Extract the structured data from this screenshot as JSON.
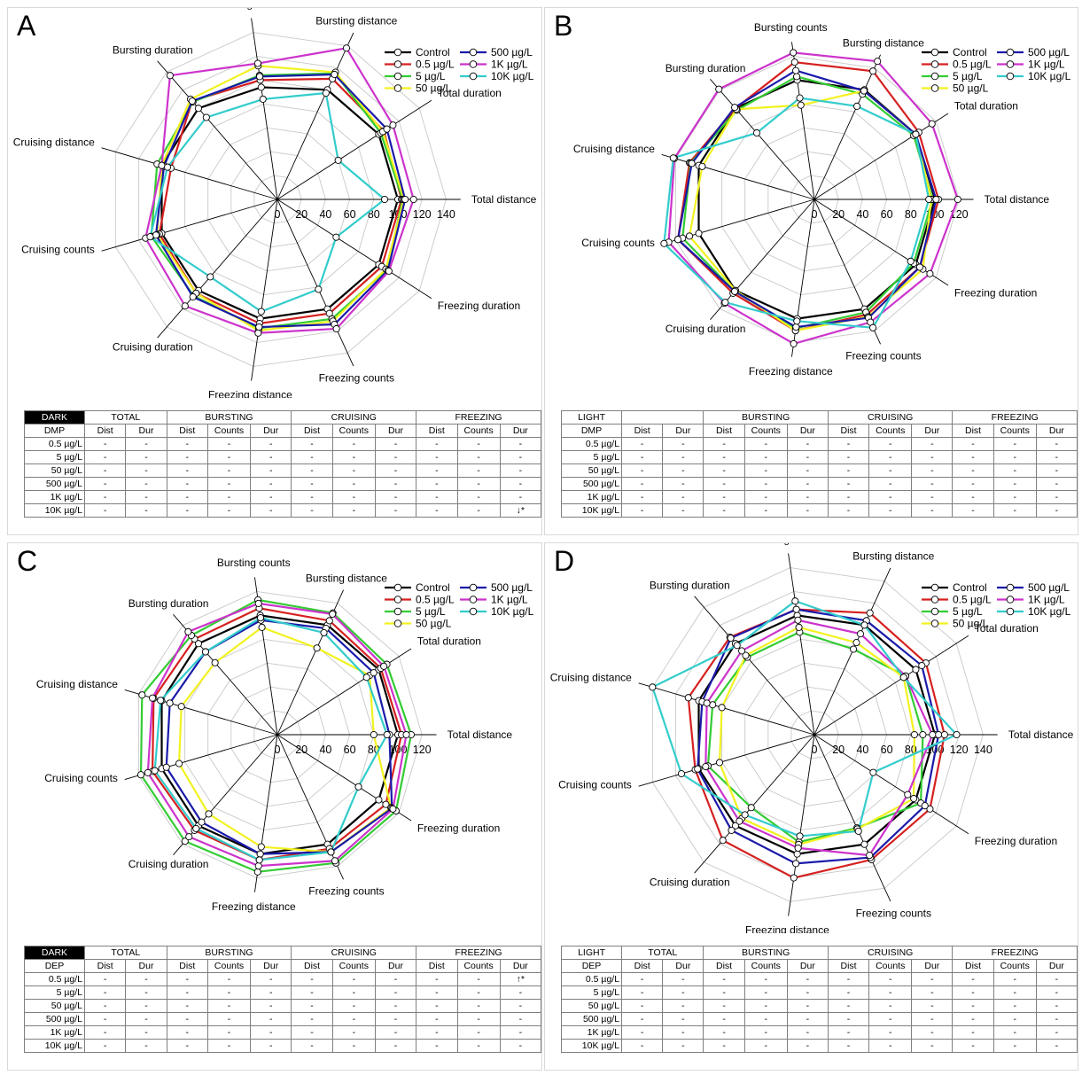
{
  "figure": {
    "panels": [
      {
        "letter": "A",
        "table": {
          "condition": "DARK",
          "compound": "DMP",
          "total_header": "TOTAL",
          "cells": [
            [
              "-",
              "-",
              "-",
              "-",
              "-",
              "-",
              "-",
              "-",
              "-",
              "-",
              "-"
            ],
            [
              "-",
              "-",
              "-",
              "-",
              "-",
              "-",
              "-",
              "-",
              "-",
              "-",
              "-"
            ],
            [
              "-",
              "-",
              "-",
              "-",
              "-",
              "-",
              "-",
              "-",
              "-",
              "-",
              "-"
            ],
            [
              "-",
              "-",
              "-",
              "-",
              "-",
              "-",
              "-",
              "-",
              "-",
              "-",
              "-"
            ],
            [
              "-",
              "-",
              "-",
              "-",
              "-",
              "-",
              "-",
              "-",
              "-",
              "-",
              "-"
            ],
            [
              "-",
              "-",
              "-",
              "-",
              "-",
              "-",
              "-",
              "-",
              "-",
              "-",
              "↓*"
            ]
          ]
        }
      },
      {
        "letter": "B",
        "table": {
          "condition": "LIGHT",
          "compound": "DMP",
          "total_header": "",
          "cells": [
            [
              "-",
              "-",
              "-",
              "-",
              "-",
              "-",
              "-",
              "-",
              "-",
              "-",
              "-"
            ],
            [
              "-",
              "-",
              "-",
              "-",
              "-",
              "-",
              "-",
              "-",
              "-",
              "-",
              "-"
            ],
            [
              "-",
              "-",
              "-",
              "-",
              "-",
              "-",
              "-",
              "-",
              "-",
              "-",
              "-"
            ],
            [
              "-",
              "-",
              "-",
              "-",
              "-",
              "-",
              "-",
              "-",
              "-",
              "-",
              "-"
            ],
            [
              "-",
              "-",
              "-",
              "-",
              "-",
              "-",
              "-",
              "-",
              "-",
              "-",
              "-"
            ],
            [
              "-",
              "-",
              "-",
              "-",
              "-",
              "-",
              "-",
              "-",
              "-",
              "-",
              "-"
            ]
          ]
        }
      },
      {
        "letter": "C",
        "table": {
          "condition": "DARK",
          "compound": "DEP",
          "total_header": "TOTAL",
          "cells": [
            [
              "-",
              "-",
              "-",
              "-",
              "-",
              "-",
              "-",
              "-",
              "-",
              "-",
              "↑*"
            ],
            [
              "-",
              "-",
              "-",
              "-",
              "-",
              "-",
              "-",
              "-",
              "-",
              "-",
              "-"
            ],
            [
              "-",
              "-",
              "-",
              "-",
              "-",
              "-",
              "-",
              "-",
              "-",
              "-",
              "-"
            ],
            [
              "-",
              "-",
              "-",
              "-",
              "-",
              "-",
              "-",
              "-",
              "-",
              "-",
              "-"
            ],
            [
              "-",
              "-",
              "-",
              "-",
              "-",
              "-",
              "-",
              "-",
              "-",
              "-",
              "-"
            ],
            [
              "-",
              "-",
              "-",
              "-",
              "-",
              "-",
              "-",
              "-",
              "-",
              "-",
              "-"
            ]
          ]
        }
      },
      {
        "letter": "D",
        "table": {
          "condition": "LIGHT",
          "compound": "DEP",
          "total_header": "TOTAL",
          "cells": [
            [
              "-",
              "-",
              "-",
              "-",
              "-",
              "-",
              "-",
              "-",
              "-",
              "-",
              "-"
            ],
            [
              "-",
              "-",
              "-",
              "-",
              "-",
              "-",
              "-",
              "-",
              "-",
              "-",
              "-"
            ],
            [
              "-",
              "-",
              "-",
              "-",
              "-",
              "-",
              "-",
              "-",
              "-",
              "-",
              "-"
            ],
            [
              "-",
              "-",
              "-",
              "-",
              "-",
              "-",
              "-",
              "-",
              "-",
              "-",
              "-"
            ],
            [
              "-",
              "-",
              "-",
              "-",
              "-",
              "-",
              "-",
              "-",
              "-",
              "-",
              "-"
            ],
            [
              "-",
              "-",
              "-",
              "-",
              "-",
              "-",
              "-",
              "-",
              "-",
              "-",
              "-"
            ]
          ]
        }
      }
    ],
    "table_common": {
      "groups": [
        "BURSTING",
        "CRUISING",
        "FREEZING"
      ],
      "subheaders": [
        "Dist",
        "Dur",
        "Dist",
        "Counts",
        "Dur",
        "Dist",
        "Counts",
        "Dur",
        "Dist",
        "Counts",
        "Dur"
      ],
      "rows": [
        "0.5 µg/L",
        "5 µg/L",
        "50 µg/L",
        "500 µg/L",
        "1K µg/L",
        "10K µg/L"
      ]
    }
  },
  "chart_data": [
    {
      "type": "radar",
      "panel": "A",
      "max": 140,
      "ticks": [
        0,
        20,
        40,
        60,
        80,
        100,
        120,
        140
      ],
      "grid": true,
      "legend_position": "top-right",
      "axes": [
        "Total distance",
        "Total duration",
        "Bursting distance",
        "Bursting counts",
        "Bursting duration",
        "Cruising distance",
        "Cruising counts",
        "Cruising duration",
        "Freezing distance",
        "Freezing counts",
        "Freezing duration"
      ],
      "series": [
        {
          "name": "Control",
          "color": "#000000",
          "values": [
            100,
            100,
            100,
            94,
            100,
            100,
            100,
            100,
            100,
            100,
            100
          ]
        },
        {
          "name": "0.5 µg/L",
          "color": "#d62020",
          "values": [
            103,
            105,
            110,
            100,
            108,
            92,
            102,
            103,
            104,
            104,
            103
          ]
        },
        {
          "name": "5 µg/L",
          "color": "#33cc33",
          "values": [
            104,
            102,
            115,
            104,
            107,
            104,
            109,
            106,
            108,
            109,
            108
          ]
        },
        {
          "name": "50 µg/L",
          "color": "#f2f220",
          "values": [
            105,
            104,
            116,
            112,
            110,
            100,
            104,
            103,
            110,
            111,
            107
          ]
        },
        {
          "name": "500 µg/L",
          "color": "#1a1aaa",
          "values": [
            106,
            108,
            114,
            103,
            108,
            98,
            105,
            107,
            107,
            114,
            109
          ]
        },
        {
          "name": "1K µg/L",
          "color": "#cc33cc",
          "values": [
            113,
            114,
            138,
            114,
            136,
            100,
            114,
            117,
            112,
            118,
            110
          ]
        },
        {
          "name": "10K µg/L",
          "color": "#33cccc",
          "values": [
            89,
            60,
            97,
            84,
            90,
            95,
            110,
            85,
            94,
            82,
            58
          ]
        }
      ]
    },
    {
      "type": "radar",
      "panel": "B",
      "max": 120,
      "ticks": [
        0,
        20,
        40,
        60,
        80,
        100,
        120
      ],
      "grid": true,
      "legend_position": "top-right",
      "axes": [
        "Total distance",
        "Total duration",
        "Bursting distance",
        "Bursting counts",
        "Bursting duration",
        "Cruising distance",
        "Cruising counts",
        "Cruising duration",
        "Freezing distance",
        "Freezing counts",
        "Freezing duration"
      ],
      "series": [
        {
          "name": "Control",
          "color": "#000000",
          "values": [
            100,
            100,
            100,
            100,
            100,
            100,
            100,
            100,
            100,
            100,
            100
          ]
        },
        {
          "name": "0.5 µg/L",
          "color": "#d62020",
          "values": [
            103,
            103,
            117,
            115,
            100,
            108,
            118,
            103,
            110,
            105,
            104
          ]
        },
        {
          "name": "5 µg/L",
          "color": "#33cc33",
          "values": [
            98,
            98,
            96,
            103,
            98,
            107,
            114,
            101,
            108,
            103,
            98
          ]
        },
        {
          "name": "50 µg/L",
          "color": "#f2f220",
          "values": [
            97,
            100,
            99,
            79,
            99,
            97,
            108,
            100,
            110,
            107,
            107
          ]
        },
        {
          "name": "500 µg/L",
          "color": "#1a1aaa",
          "values": [
            101,
            100,
            99,
            108,
            101,
            106,
            118,
            101,
            107,
            108,
            104
          ]
        },
        {
          "name": "1K µg/L",
          "color": "#cc33cc",
          "values": [
            119,
            116,
            126,
            123,
            121,
            121,
            126,
            114,
            121,
            112,
            114
          ]
        },
        {
          "name": "10K µg/L",
          "color": "#33cccc",
          "values": [
            95,
            100,
            85,
            85,
            73,
            122,
            130,
            113,
            102,
            117,
            95
          ]
        }
      ]
    },
    {
      "type": "radar",
      "panel": "C",
      "max": 120,
      "ticks": [
        0,
        20,
        40,
        60,
        80,
        100,
        120
      ],
      "grid": true,
      "legend_position": "top-right",
      "axes": [
        "Total distance",
        "Total duration",
        "Bursting distance",
        "Bursting counts",
        "Bursting duration",
        "Cruising distance",
        "Cruising counts",
        "Cruising duration",
        "Freezing distance",
        "Freezing counts",
        "Freezing duration"
      ],
      "series": [
        {
          "name": "Control",
          "color": "#000000",
          "values": [
            100,
            100,
            100,
            100,
            100,
            100,
            100,
            100,
            100,
            100,
            100
          ]
        },
        {
          "name": "0.5 µg/L",
          "color": "#d62020",
          "values": [
            103,
            102,
            104,
            106,
            105,
            107,
            108,
            105,
            105,
            104,
            107
          ]
        },
        {
          "name": "5 µg/L",
          "color": "#33cc33",
          "values": [
            111,
            108,
            111,
            113,
            109,
            117,
            118,
            117,
            115,
            117,
            117
          ]
        },
        {
          "name": "50 µg/L",
          "color": "#f2f220",
          "values": [
            80,
            91,
            79,
            90,
            79,
            83,
            85,
            87,
            94,
            107,
            112
          ]
        },
        {
          "name": "500 µg/L",
          "color": "#1a1aaa",
          "values": [
            93,
            95,
            97,
            96,
            91,
            93,
            96,
            96,
            100,
            107,
            113
          ]
        },
        {
          "name": "1K µg/L",
          "color": "#cc33cc",
          "values": [
            107,
            105,
            110,
            110,
            113,
            108,
            112,
            112,
            110,
            115,
            114
          ]
        },
        {
          "name": "10K µg/L",
          "color": "#33cccc",
          "values": [
            91,
            88,
            93,
            98,
            91,
            101,
            106,
            103,
            105,
            107,
            80
          ]
        }
      ]
    },
    {
      "type": "radar",
      "panel": "D",
      "max": 140,
      "ticks": [
        0,
        20,
        40,
        60,
        80,
        100,
        120,
        140
      ],
      "grid": true,
      "legend_position": "top-right",
      "axes": [
        "Total distance",
        "Total duration",
        "Bursting distance",
        "Bursting counts",
        "Bursting duration",
        "Cruising distance",
        "Cruising counts",
        "Cruising duration",
        "Freezing distance",
        "Freezing counts",
        "Freezing duration"
      ],
      "series": [
        {
          "name": "Control",
          "color": "#000000",
          "values": [
            100,
            100,
            100,
            100,
            100,
            100,
            100,
            100,
            100,
            100,
            100
          ]
        },
        {
          "name": "0.5 µg/L",
          "color": "#d62020",
          "values": [
            108,
            110,
            111,
            105,
            107,
            109,
            103,
            116,
            120,
            114,
            114
          ]
        },
        {
          "name": "5 µg/L",
          "color": "#33cc33",
          "values": [
            90,
            90,
            78,
            86,
            85,
            88,
            92,
            80,
            90,
            85,
            105
          ]
        },
        {
          "name": "50 µg/L",
          "color": "#f2f220",
          "values": [
            83,
            88,
            84,
            90,
            87,
            80,
            82,
            92,
            92,
            86,
            98
          ]
        },
        {
          "name": "500 µg/L",
          "color": "#1a1aaa",
          "values": [
            103,
            106,
            104,
            105,
            106,
            97,
            101,
            105,
            108,
            112,
            109
          ]
        },
        {
          "name": "1K µg/L",
          "color": "#cc33cc",
          "values": [
            98,
            90,
            92,
            96,
            92,
            93,
            94,
            95,
            95,
            110,
            92
          ]
        },
        {
          "name": "10K µg/L",
          "color": "#33cccc",
          "values": [
            118,
            88,
            100,
            112,
            98,
            140,
            115,
            88,
            85,
            88,
            58
          ]
        }
      ]
    }
  ]
}
